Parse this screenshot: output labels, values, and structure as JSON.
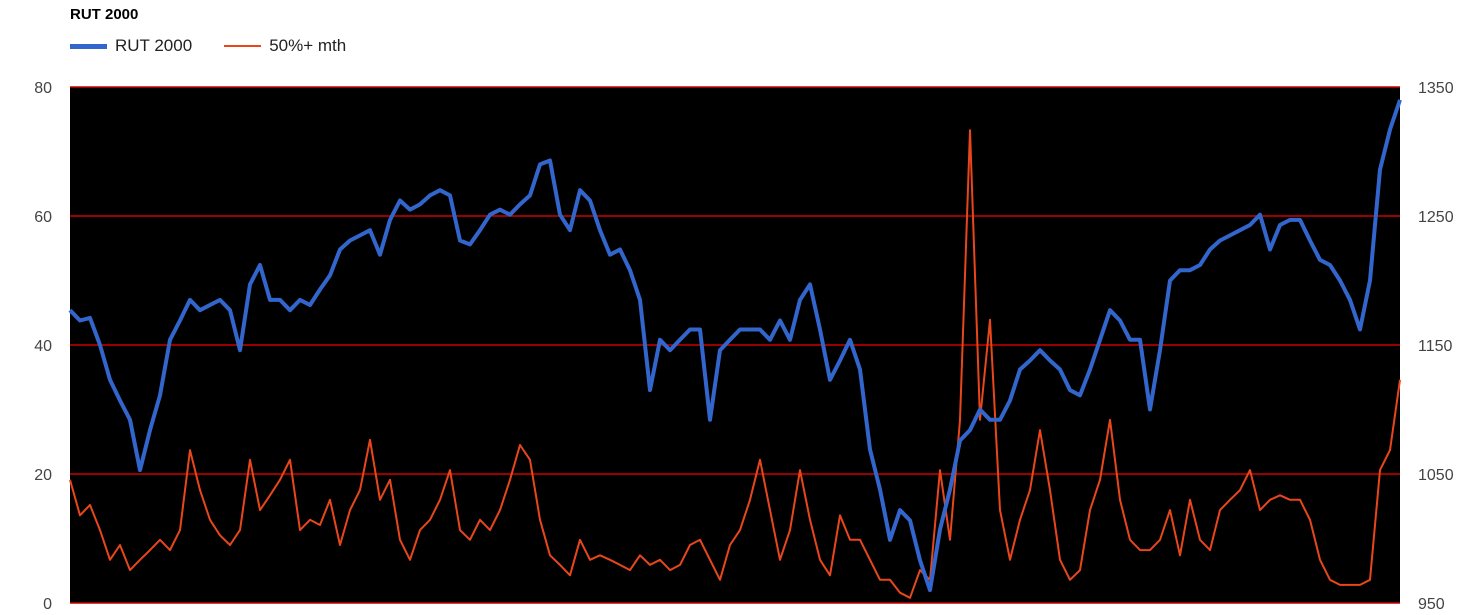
{
  "chart_data": {
    "type": "line",
    "title": "RUT 2000",
    "legend_placement": "top-left",
    "background": "#000000",
    "grid": true,
    "grid_color": "#cc0000",
    "left_axis": {
      "ylim": [
        0,
        80
      ],
      "ticks": [
        "0",
        "20",
        "40",
        "60",
        "80"
      ]
    },
    "right_axis": {
      "ylim": [
        950,
        1350
      ],
      "ticks": [
        "950",
        "1050",
        "1150",
        "1250",
        "1350"
      ]
    },
    "series": [
      {
        "name": "RUT 2000",
        "axis": "right",
        "color": "#3366cc",
        "values": [
          1177,
          1169,
          1171,
          1150,
          1123,
          1107,
          1092,
          1053,
          1084,
          1111,
          1154,
          1169,
          1185,
          1177,
          1181,
          1185,
          1177,
          1146,
          1197,
          1212,
          1185,
          1185,
          1177,
          1185,
          1181,
          1193,
          1204,
          1224,
          1231,
          1235,
          1239,
          1220,
          1247,
          1262,
          1255,
          1259,
          1266,
          1270,
          1266,
          1231,
          1228,
          1239,
          1251,
          1255,
          1251,
          1259,
          1266,
          1290,
          1293,
          1251,
          1239,
          1270,
          1262,
          1239,
          1220,
          1224,
          1208,
          1185,
          1115,
          1154,
          1146,
          1154,
          1162,
          1162,
          1092,
          1146,
          1154,
          1162,
          1162,
          1162,
          1154,
          1169,
          1154,
          1185,
          1197,
          1162,
          1123,
          1138,
          1154,
          1131,
          1069,
          1038,
          999,
          1022,
          1014,
          983,
          960,
          1007,
          1038,
          1076,
          1084,
          1100,
          1092,
          1092,
          1107,
          1131,
          1138,
          1146,
          1138,
          1131,
          1115,
          1111,
          1131,
          1154,
          1177,
          1169,
          1154,
          1154,
          1100,
          1146,
          1200,
          1208,
          1208,
          1212,
          1224,
          1231,
          1235,
          1239,
          1243,
          1251,
          1224,
          1243,
          1247,
          1247,
          1231,
          1216,
          1212,
          1200,
          1185,
          1162,
          1200,
          1286,
          1317,
          1340
        ]
      },
      {
        "name": "50%+ mth",
        "axis": "left",
        "color": "#e8461b",
        "values": [
          19.1,
          13.6,
          15.2,
          11.3,
          6.7,
          9.0,
          5.1,
          6.7,
          8.2,
          9.8,
          8.2,
          11.3,
          23.7,
          17.5,
          12.9,
          10.5,
          9.0,
          11.3,
          22.2,
          14.4,
          16.7,
          19.1,
          22.2,
          11.3,
          12.9,
          12.1,
          16.0,
          9.0,
          14.4,
          17.5,
          25.3,
          16.0,
          19.1,
          9.8,
          6.7,
          11.3,
          12.9,
          16.0,
          20.6,
          11.3,
          9.8,
          12.9,
          11.3,
          14.4,
          19.1,
          24.5,
          22.2,
          12.9,
          7.4,
          5.9,
          4.3,
          9.8,
          6.7,
          7.4,
          6.7,
          5.9,
          5.1,
          7.4,
          5.9,
          6.7,
          5.1,
          5.9,
          9.0,
          9.8,
          6.7,
          3.6,
          9.0,
          11.3,
          16.0,
          22.2,
          14.4,
          6.7,
          11.3,
          20.6,
          12.9,
          6.7,
          4.3,
          13.6,
          9.8,
          9.8,
          6.7,
          3.6,
          3.6,
          1.6,
          0.8,
          5.1,
          3.6,
          20.6,
          9.8,
          28.4,
          73.3,
          28.4,
          43.9,
          14.4,
          6.7,
          12.9,
          17.5,
          26.8,
          17.5,
          6.7,
          3.6,
          5.1,
          14.4,
          19.1,
          28.4,
          16.0,
          9.8,
          8.2,
          8.2,
          9.8,
          14.4,
          7.4,
          16.0,
          9.8,
          8.2,
          14.4,
          16.0,
          17.5,
          20.6,
          14.4,
          16.0,
          16.7,
          16.0,
          16.0,
          12.9,
          6.7,
          3.6,
          2.8,
          2.8,
          2.8,
          3.6,
          20.6,
          23.7,
          34.6
        ]
      }
    ]
  }
}
